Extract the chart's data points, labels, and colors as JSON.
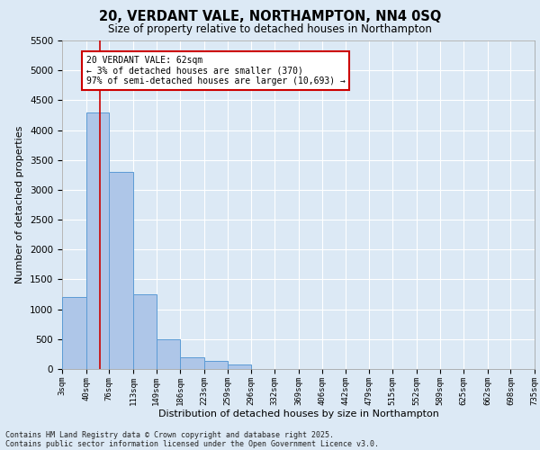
{
  "title": "20, VERDANT VALE, NORTHAMPTON, NN4 0SQ",
  "subtitle": "Size of property relative to detached houses in Northampton",
  "xlabel": "Distribution of detached houses by size in Northampton",
  "ylabel": "Number of detached properties",
  "annotation_title": "20 VERDANT VALE: 62sqm",
  "annotation_line1": "← 3% of detached houses are smaller (370)",
  "annotation_line2": "97% of semi-detached houses are larger (10,693) →",
  "footer_line1": "Contains HM Land Registry data © Crown copyright and database right 2025.",
  "footer_line2": "Contains public sector information licensed under the Open Government Licence v3.0.",
  "bin_edges": [
    3,
    40,
    76,
    113,
    149,
    186,
    223,
    259,
    296,
    332,
    369,
    406,
    442,
    479,
    515,
    552,
    589,
    625,
    662,
    698,
    735
  ],
  "bin_counts": [
    1200,
    4300,
    3300,
    1250,
    500,
    200,
    130,
    80,
    0,
    0,
    0,
    0,
    0,
    0,
    0,
    0,
    0,
    0,
    0,
    0
  ],
  "bar_color": "#aec6e8",
  "bar_edge_color": "#5b9bd5",
  "vline_color": "#cc0000",
  "vline_x": 62,
  "bg_color": "#dce9f5",
  "plot_bg_color": "#dce9f5",
  "grid_color": "#ffffff",
  "annotation_box_color": "#ffffff",
  "annotation_box_edge": "#cc0000",
  "ylim": [
    0,
    5500
  ],
  "yticks": [
    0,
    500,
    1000,
    1500,
    2000,
    2500,
    3000,
    3500,
    4000,
    4500,
    5000,
    5500
  ],
  "xlim": [
    3,
    735
  ]
}
